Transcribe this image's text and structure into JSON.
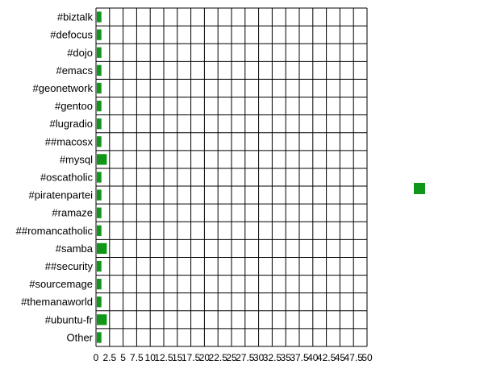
{
  "chart_data": {
    "type": "bar",
    "orientation": "horizontal",
    "categories": [
      "#biztalk",
      "#defocus",
      "#dojo",
      "#emacs",
      "#geonetwork",
      "#gentoo",
      "#lugradio",
      "##macosx",
      "#mysql",
      "#oscatholic",
      "#piratenpartei",
      "#ramaze",
      "##romancatholic",
      "#samba",
      "##security",
      "#sourcemage",
      "#themanaworld",
      "#ubuntu-fr",
      "Other"
    ],
    "series": [
      {
        "values": [
          1,
          1,
          1,
          1,
          1,
          1,
          1,
          1,
          2,
          1,
          1,
          1,
          1,
          2,
          1,
          1,
          1,
          2,
          1
        ]
      }
    ],
    "xlim": [
      0,
      50
    ],
    "xticks": [
      "0",
      "2.5",
      "5",
      "7.5",
      "10",
      "12.5",
      "15",
      "17.5",
      "20",
      "22.5",
      "25",
      "27.5",
      "30",
      "32.5",
      "35",
      "37.5",
      "40",
      "42.5",
      "45",
      "47.5",
      "50"
    ],
    "grid": true,
    "legend_position": "right",
    "colors": {
      "bar": "#109618",
      "grid": "#000000",
      "background": "#ffffff"
    }
  }
}
